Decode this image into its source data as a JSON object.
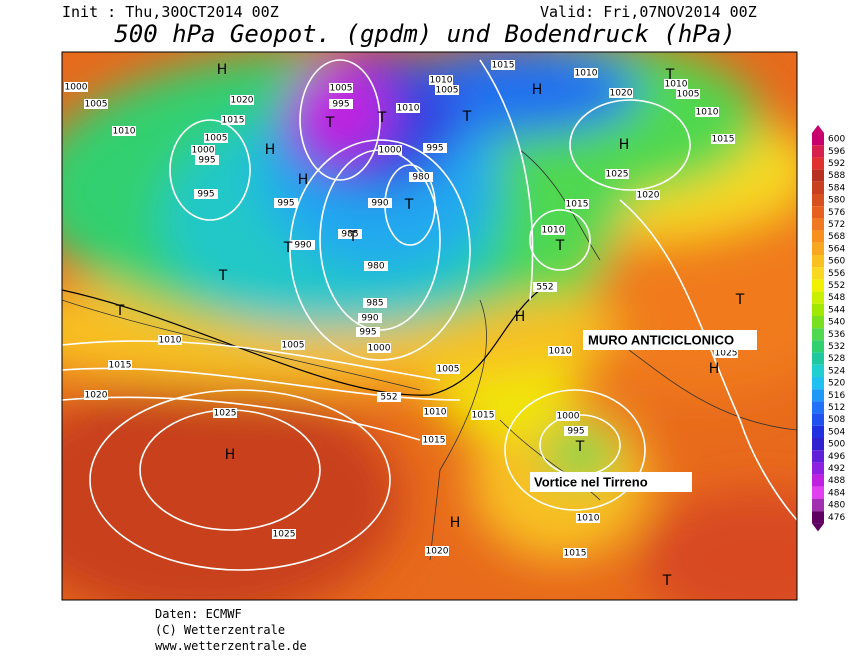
{
  "header": {
    "init": "Init : Thu,30OCT2014 00Z",
    "valid": "Valid: Fri,07NOV2014 00Z",
    "title": "500 hPa Geopot. (gpdm) und Bodendruck (hPa)"
  },
  "map": {
    "annotations": [
      "MURO ANTICICLONICO",
      "Vortice nel Tirreno"
    ],
    "pressure_labels": [
      "1000",
      "1005",
      "1010",
      "1005",
      "1000",
      "995",
      "995",
      "1020",
      "1015",
      "1005",
      "995",
      "1010",
      "1005",
      "1010",
      "1015",
      "1010",
      "1010",
      "1005",
      "1020",
      "1010",
      "1015",
      "1000",
      "995",
      "980",
      "995",
      "990",
      "985",
      "990",
      "980",
      "985",
      "990",
      "995",
      "1000",
      "1005",
      "1010",
      "1015",
      "1020",
      "1025",
      "1025",
      "1005",
      "1010",
      "1015",
      "1015",
      "1025",
      "1020",
      "1015",
      "1010",
      "552",
      "552",
      "1010",
      "1025",
      "1000",
      "995",
      "1010",
      "1015",
      "1020"
    ],
    "centers": [
      "H",
      "T",
      "T",
      "T",
      "H",
      "T",
      "H",
      "H",
      "H",
      "T",
      "T",
      "T",
      "T",
      "T",
      "T",
      "H",
      "H",
      "T",
      "T",
      "H",
      "H",
      "T"
    ]
  },
  "legend": {
    "levels": [
      600,
      596,
      592,
      588,
      584,
      580,
      576,
      572,
      568,
      564,
      560,
      556,
      552,
      548,
      544,
      540,
      536,
      532,
      528,
      524,
      520,
      516,
      512,
      508,
      504,
      500,
      496,
      492,
      488,
      484,
      480,
      476
    ],
    "colors": [
      "#c8006e",
      "#d8204f",
      "#e03030",
      "#b83020",
      "#c84020",
      "#d85020",
      "#e86020",
      "#f07820",
      "#f89020",
      "#f8a820",
      "#f8c020",
      "#f8d820",
      "#f0f000",
      "#c8f000",
      "#a0e800",
      "#78e020",
      "#50d850",
      "#30d070",
      "#20c8a0",
      "#20d0d0",
      "#20c0f0",
      "#2098f8",
      "#2070f8",
      "#2050f0",
      "#2030e0",
      "#3020d0",
      "#6020d8",
      "#9020e0",
      "#c020e0",
      "#e040f0",
      "#a030b0",
      "#600060"
    ]
  },
  "footer": {
    "source": "Daten: ECMWF",
    "copyright": "(C) Wetterzentrale",
    "url": "www.wetterzentrale.de"
  }
}
